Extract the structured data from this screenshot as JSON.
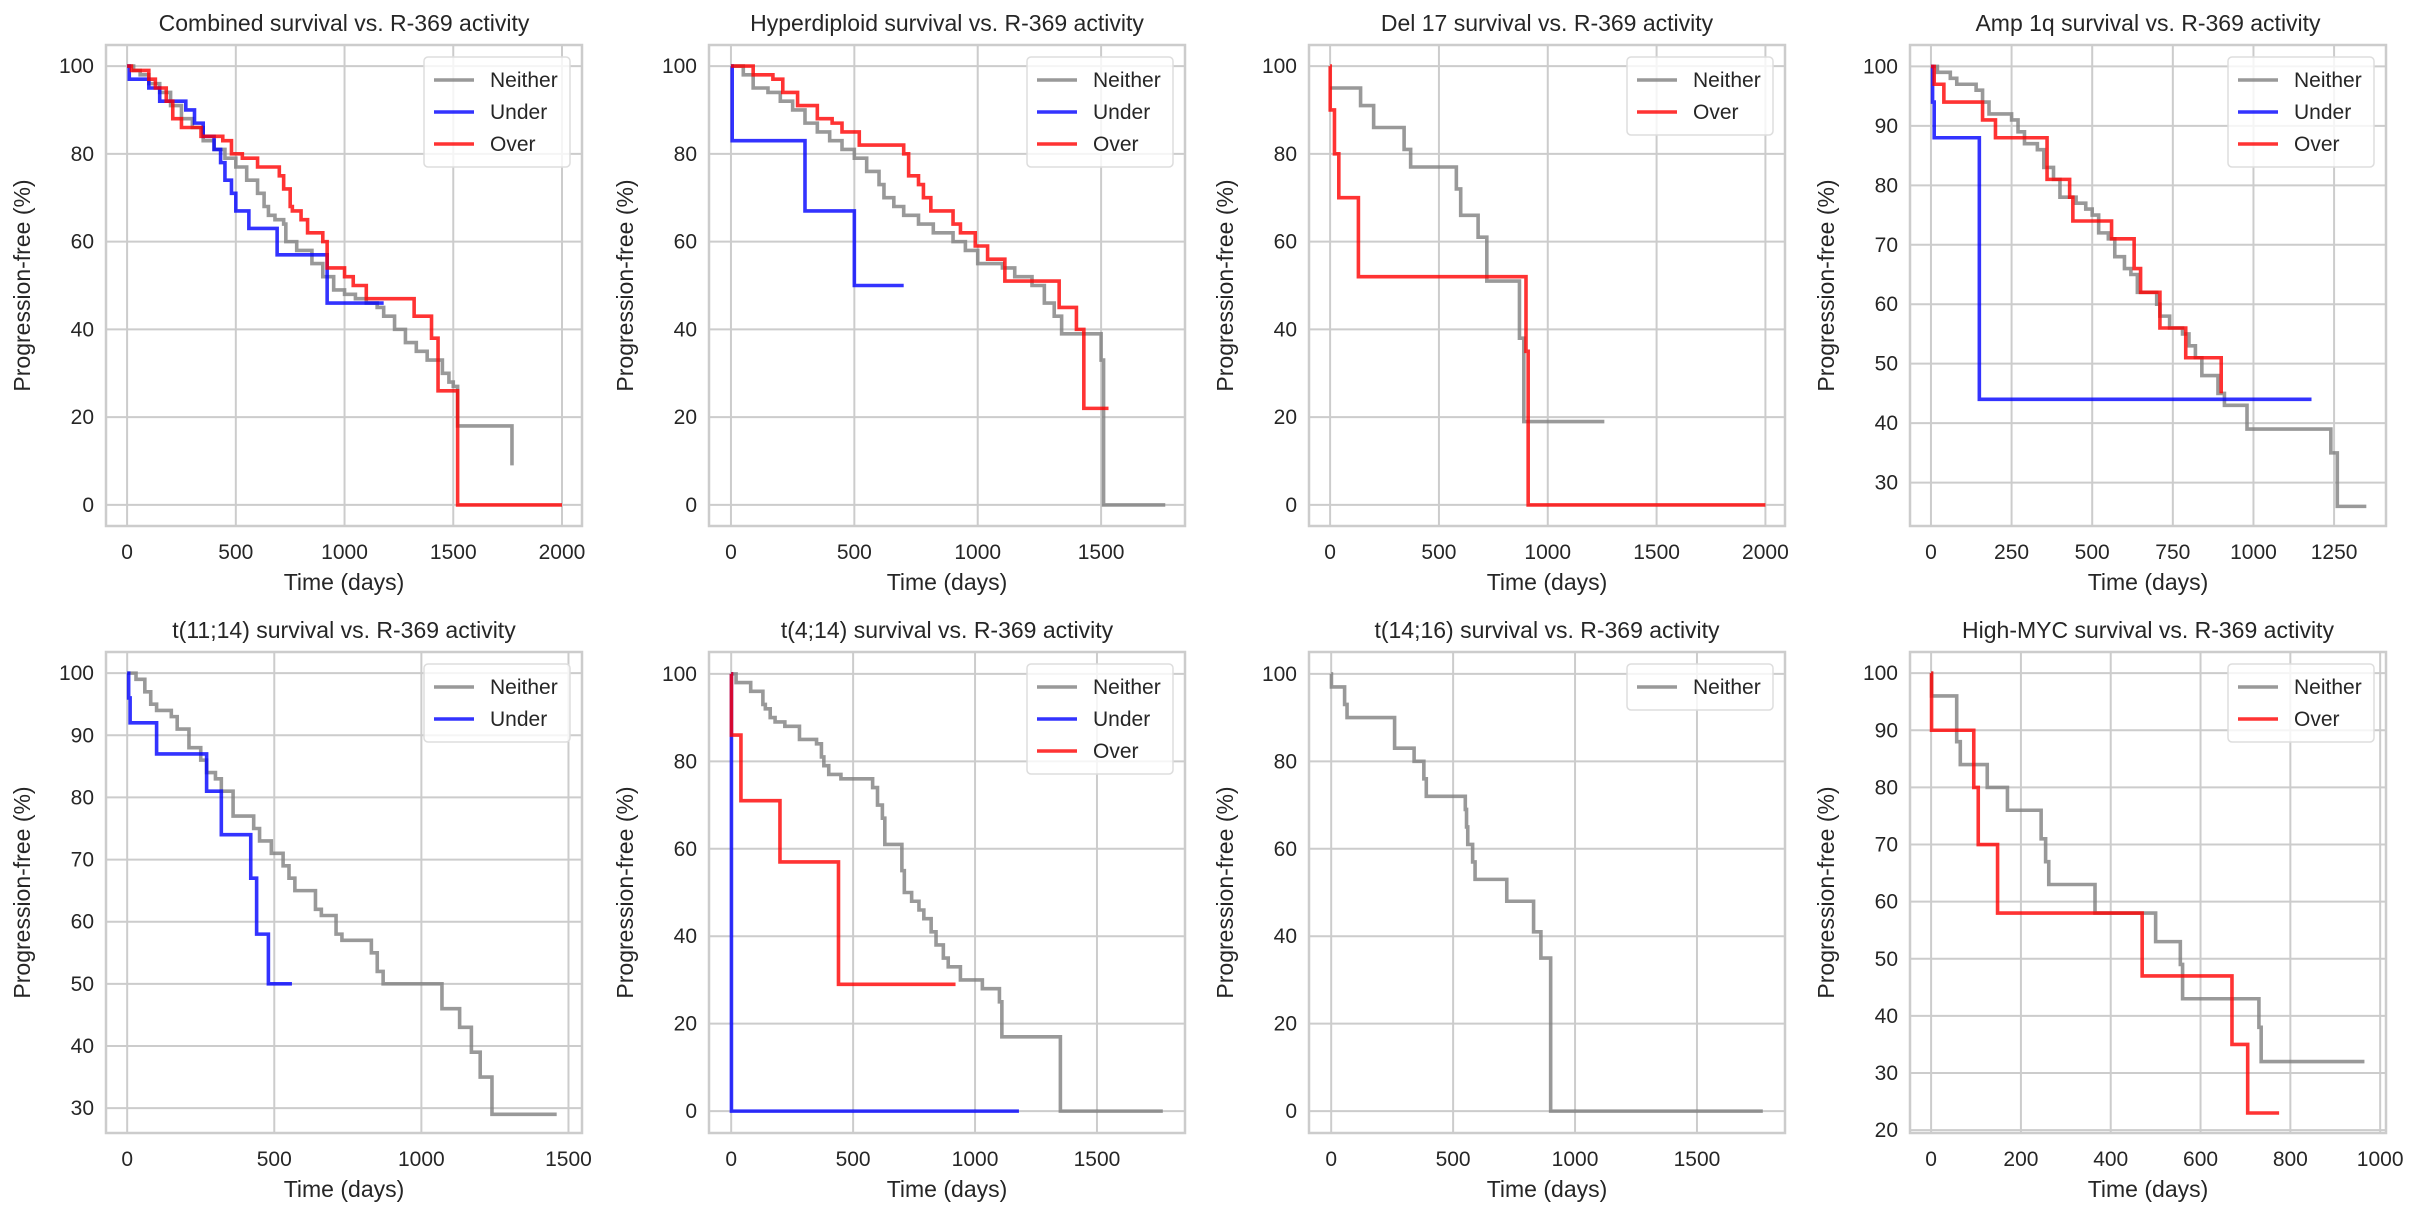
{
  "figure": {
    "colors": {
      "Neither": "#808080",
      "Under": "#0000ff",
      "Over": "#ff0000"
    }
  },
  "chart_data": [
    {
      "type": "line",
      "title": "Combined survival vs. R-369 activity",
      "xlabel": "Time (days)",
      "ylabel": "Progression-free (%)",
      "xlim": [
        -97,
        2092
      ],
      "ylim": [
        -4.8,
        104.8
      ],
      "xticks": [
        0,
        500,
        1000,
        1500,
        2000
      ],
      "yticks": [
        0,
        20,
        40,
        60,
        80,
        100
      ],
      "grid": true,
      "legend": "top-right",
      "series": [
        {
          "name": "Neither",
          "x": [
            0,
            30,
            60,
            100,
            150,
            200,
            250,
            300,
            350,
            400,
            450,
            500,
            550,
            600,
            630,
            650,
            680,
            720,
            730,
            780,
            850,
            900,
            950,
            1000,
            1050,
            1100,
            1150,
            1180,
            1230,
            1280,
            1330,
            1380,
            1420,
            1450,
            1480,
            1500,
            1520,
            1760,
            1770
          ],
          "y": [
            100,
            99,
            98,
            96,
            94,
            91,
            88,
            86,
            83,
            81,
            79,
            77,
            74,
            71,
            68,
            66,
            65,
            64,
            60,
            58,
            55,
            52,
            49,
            48,
            47,
            46,
            45,
            43,
            40,
            37,
            35,
            33,
            33,
            30,
            28,
            27,
            18,
            18,
            9
          ]
        },
        {
          "name": "Under",
          "x": [
            0,
            10,
            100,
            150,
            270,
            310,
            350,
            400,
            430,
            450,
            480,
            500,
            560,
            690,
            920,
            1180
          ],
          "y": [
            100,
            97,
            95,
            92,
            90,
            87,
            84,
            81,
            78,
            74,
            71,
            67,
            63,
            57,
            46,
            46
          ]
        },
        {
          "name": "Over",
          "x": [
            0,
            20,
            100,
            130,
            180,
            210,
            250,
            340,
            370,
            440,
            480,
            530,
            600,
            670,
            700,
            720,
            750,
            760,
            800,
            830,
            900,
            920,
            1000,
            1040,
            1100,
            1320,
            1400,
            1430,
            1520,
            2000
          ],
          "y": [
            100,
            99,
            97,
            95,
            92,
            88,
            86,
            84,
            84,
            83,
            80,
            79,
            77,
            77,
            75,
            72,
            68,
            67,
            65,
            62,
            60,
            54,
            52,
            50,
            47,
            43,
            38,
            26,
            0,
            0
          ]
        }
      ]
    },
    {
      "type": "line",
      "title": "Hyperdiploid survival vs. R-369 activity",
      "xlabel": "Time (days)",
      "ylabel": "Progression-free (%)",
      "xlim": [
        -89,
        1840
      ],
      "ylim": [
        -4.8,
        104.8
      ],
      "xticks": [
        0,
        500,
        1000,
        1500
      ],
      "yticks": [
        0,
        20,
        40,
        60,
        80,
        100
      ],
      "grid": true,
      "legend": "top-right",
      "series": [
        {
          "name": "Neither",
          "x": [
            0,
            50,
            90,
            150,
            200,
            250,
            300,
            350,
            400,
            450,
            500,
            550,
            600,
            620,
            660,
            700,
            760,
            820,
            900,
            950,
            1000,
            1100,
            1150,
            1220,
            1270,
            1310,
            1340,
            1400,
            1500,
            1510,
            1760
          ],
          "y": [
            100,
            98,
            95,
            94,
            92,
            90,
            87,
            85,
            83,
            81,
            79,
            76,
            73,
            70,
            68,
            66,
            64,
            62,
            60,
            58,
            55,
            54,
            52,
            50,
            46,
            43,
            39,
            39,
            33,
            0,
            0
          ]
        },
        {
          "name": "Under",
          "x": [
            0,
            5,
            300,
            500,
            700
          ],
          "y": [
            100,
            83,
            67,
            50,
            50
          ]
        },
        {
          "name": "Over",
          "x": [
            0,
            90,
            170,
            210,
            270,
            350,
            410,
            450,
            520,
            700,
            720,
            760,
            780,
            810,
            900,
            930,
            990,
            1040,
            1110,
            1330,
            1400,
            1430,
            1530
          ],
          "y": [
            100,
            98,
            97,
            94,
            91,
            88,
            87,
            85,
            82,
            80,
            75,
            73,
            70,
            67,
            64,
            62,
            59,
            56,
            51,
            45,
            40,
            22,
            22
          ]
        }
      ]
    },
    {
      "type": "line",
      "title": "Del 17 survival vs. R-369 activity",
      "xlabel": "Time (days)",
      "ylabel": "Progression-free (%)",
      "xlim": [
        -97,
        2090
      ],
      "ylim": [
        -4.8,
        104.8
      ],
      "xticks": [
        0,
        500,
        1000,
        1500,
        2000
      ],
      "yticks": [
        0,
        20,
        40,
        60,
        80,
        100
      ],
      "grid": true,
      "legend": "top-right",
      "series": [
        {
          "name": "Neither",
          "x": [
            0,
            140,
            200,
            340,
            370,
            580,
            600,
            680,
            720,
            870,
            890,
            1260
          ],
          "y": [
            95,
            91,
            86,
            81,
            77,
            72,
            66,
            61,
            51,
            38,
            19,
            19
          ]
        },
        {
          "name": "Over",
          "x": [
            0,
            0.5,
            20,
            40,
            130,
            900,
            910,
            2000
          ],
          "y": [
            100,
            90,
            80,
            70,
            52,
            35,
            0,
            0
          ]
        }
      ]
    },
    {
      "type": "line",
      "title": "Amp 1q survival vs. R-369 activity",
      "xlabel": "Time (days)",
      "ylabel": "Progression-free (%)",
      "xlim": [
        -65,
        1411
      ],
      "ylim": [
        22.7,
        103.6
      ],
      "xticks": [
        0,
        250,
        500,
        750,
        1000,
        1250
      ],
      "yticks": [
        30,
        40,
        50,
        60,
        70,
        80,
        90,
        100
      ],
      "grid": true,
      "legend": "top-right",
      "series": [
        {
          "name": "Neither",
          "x": [
            0,
            20,
            60,
            80,
            140,
            160,
            180,
            250,
            270,
            290,
            330,
            350,
            380,
            400,
            450,
            480,
            500,
            520,
            550,
            570,
            600,
            620,
            640,
            700,
            710,
            740,
            780,
            800,
            820,
            840,
            890,
            910,
            980,
            1240,
            1260,
            1350
          ],
          "y": [
            100,
            99,
            98,
            97,
            96,
            94,
            92,
            91,
            89,
            87,
            86,
            83,
            81,
            78,
            77,
            76,
            75,
            72,
            71,
            68,
            66,
            65,
            62,
            60,
            58,
            56,
            55,
            53,
            51,
            48,
            45,
            43,
            39,
            35,
            26,
            26
          ]
        },
        {
          "name": "Under",
          "x": [
            0,
            5,
            10,
            150,
            1180
          ],
          "y": [
            100,
            94,
            88,
            44,
            44
          ]
        },
        {
          "name": "Over",
          "x": [
            0,
            10,
            40,
            160,
            200,
            360,
            430,
            440,
            560,
            630,
            650,
            710,
            790,
            900
          ],
          "y": [
            100,
            97,
            94,
            91,
            88,
            81,
            78,
            74,
            71,
            66,
            62,
            56,
            51,
            45
          ]
        }
      ]
    },
    {
      "type": "line",
      "title": "t(11;14) survival vs. R-369 activity",
      "xlabel": "Time (days)",
      "ylabel": "Progression-free (%)",
      "xlim": [
        -72,
        1546
      ],
      "ylim": [
        26.0,
        103.4
      ],
      "xticks": [
        0,
        500,
        1000,
        1500
      ],
      "yticks": [
        30,
        40,
        50,
        60,
        70,
        80,
        90,
        100
      ],
      "grid": true,
      "legend": "top-right",
      "series": [
        {
          "name": "Neither",
          "x": [
            0,
            30,
            60,
            80,
            100,
            150,
            170,
            210,
            250,
            270,
            300,
            320,
            360,
            430,
            450,
            490,
            530,
            550,
            570,
            640,
            660,
            710,
            730,
            830,
            850,
            870,
            1070,
            1130,
            1170,
            1200,
            1240,
            1460
          ],
          "y": [
            100,
            99,
            97,
            95,
            94,
            93,
            91,
            88,
            86,
            84,
            83,
            81,
            77,
            75,
            73,
            71,
            69,
            67,
            65,
            62,
            61,
            58,
            57,
            55,
            52,
            50,
            46,
            43,
            39,
            35,
            29,
            29
          ]
        },
        {
          "name": "Under",
          "x": [
            0,
            5,
            10,
            100,
            270,
            320,
            420,
            440,
            480,
            560
          ],
          "y": [
            100,
            96,
            92,
            87,
            81,
            74,
            67,
            58,
            50,
            50
          ]
        }
      ]
    },
    {
      "type": "line",
      "title": "t(4;14) survival vs. R-369 activity",
      "xlabel": "Time (days)",
      "ylabel": "Progression-free (%)",
      "xlim": [
        -91,
        1861
      ],
      "ylim": [
        -5,
        105
      ],
      "xticks": [
        0,
        500,
        1000,
        1500
      ],
      "yticks": [
        0,
        20,
        40,
        60,
        80,
        100
      ],
      "grid": true,
      "legend": "top-right",
      "series": [
        {
          "name": "Neither",
          "x": [
            0,
            20,
            80,
            130,
            140,
            160,
            180,
            220,
            280,
            350,
            370,
            380,
            400,
            450,
            580,
            600,
            620,
            630,
            700,
            710,
            740,
            770,
            790,
            820,
            840,
            870,
            890,
            940,
            1030,
            1100,
            1110,
            1350,
            1770
          ],
          "y": [
            100,
            98,
            96,
            93,
            92,
            90,
            89,
            88,
            85,
            84,
            81,
            79,
            77,
            76,
            74,
            70,
            67,
            61,
            55,
            50,
            48,
            46,
            44,
            41,
            38,
            35,
            33,
            30,
            28,
            25,
            17,
            0,
            0
          ]
        },
        {
          "name": "Under",
          "x": [
            0,
            1,
            1180
          ],
          "y": [
            100,
            0,
            0
          ]
        },
        {
          "name": "Over",
          "x": [
            0,
            1,
            40,
            200,
            440,
            920
          ],
          "y": [
            100,
            86,
            71,
            57,
            29,
            29
          ]
        }
      ]
    },
    {
      "type": "line",
      "title": "t(14;16) survival vs. R-369 activity",
      "xlabel": "Time (days)",
      "ylabel": "Progression-free (%)",
      "xlim": [
        -91,
        1861
      ],
      "ylim": [
        -5,
        105
      ],
      "xticks": [
        0,
        500,
        1000,
        1500
      ],
      "yticks": [
        0,
        20,
        40,
        60,
        80,
        100
      ],
      "grid": true,
      "legend": "top-right",
      "series": [
        {
          "name": "Neither",
          "x": [
            0,
            1,
            55,
            65,
            260,
            340,
            380,
            390,
            550,
            555,
            560,
            580,
            590,
            720,
            830,
            860,
            900,
            1770
          ],
          "y": [
            100,
            97,
            93,
            90,
            83,
            80,
            76,
            72,
            69,
            65,
            61,
            57,
            53,
            48,
            41,
            35,
            0,
            0
          ]
        }
      ]
    },
    {
      "type": "line",
      "title": "High-MYC survival vs. R-369 activity",
      "xlabel": "Time (days)",
      "ylabel": "Progression-free (%)",
      "xlim": [
        -47,
        1013
      ],
      "ylim": [
        19.5,
        103.7
      ],
      "xticks": [
        0,
        200,
        400,
        600,
        800,
        1000
      ],
      "yticks": [
        20,
        30,
        40,
        50,
        60,
        70,
        80,
        90,
        100
      ],
      "grid": true,
      "legend": "top-right",
      "series": [
        {
          "name": "Neither",
          "x": [
            0,
            1,
            57,
            65,
            125,
            170,
            245,
            255,
            262,
            365,
            500,
            555,
            560,
            730,
            735,
            965
          ],
          "y": [
            100,
            96,
            88,
            84,
            80,
            76,
            71,
            67,
            63,
            58,
            53,
            49,
            43,
            38,
            32,
            32
          ]
        },
        {
          "name": "Over",
          "x": [
            0,
            1,
            95,
            105,
            148,
            470,
            670,
            705,
            775
          ],
          "y": [
            100,
            90,
            80,
            70,
            58,
            47,
            35,
            23,
            23
          ]
        }
      ]
    }
  ]
}
